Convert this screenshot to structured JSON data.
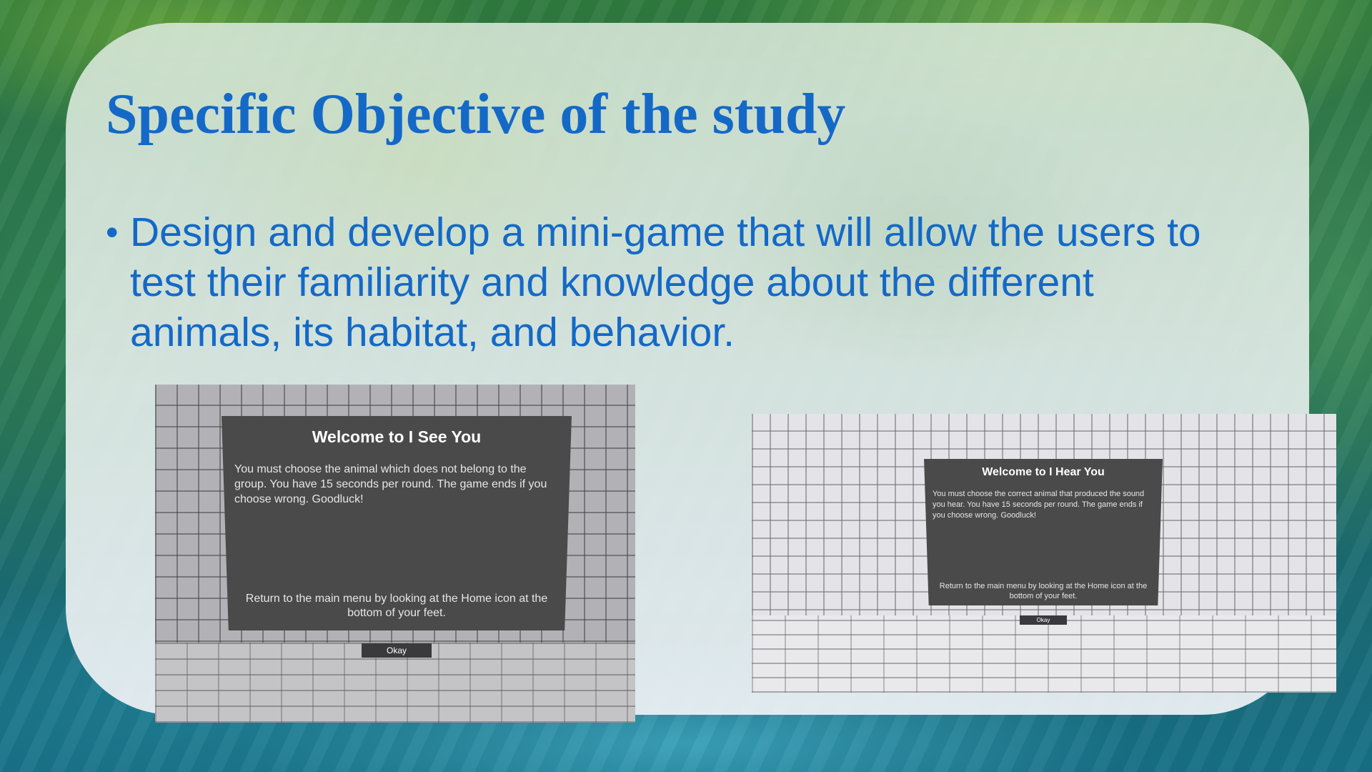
{
  "slide": {
    "title": "Specific Objective of the study",
    "bullet_marker": "•",
    "bullet_text": "Design and develop a mini-game that will allow the users to test their familiarity and knowledge about the different animals, its habitat, and behavior."
  },
  "screenshots": {
    "i_see_you": {
      "title": "Welcome to I See You",
      "body": "You must choose the animal which does not belong to the group. You have 15 seconds per round. The game ends if you choose wrong. Goodluck!",
      "footer": "Return to the main menu by looking at the Home icon at the bottom of your feet.",
      "button_label": "Okay"
    },
    "i_hear_you": {
      "title": "Welcome to I Hear You",
      "body": "You must choose the correct animal that produced the sound you hear. You have 15 seconds per round. The game ends if you choose wrong. Goodluck!",
      "footer": "Return to the main menu by looking at the Home icon at the bottom of your feet.",
      "button_label": "Okay"
    }
  },
  "colors": {
    "title_blue": "#1469c7",
    "dialog_bg": "#4a4a4b"
  }
}
